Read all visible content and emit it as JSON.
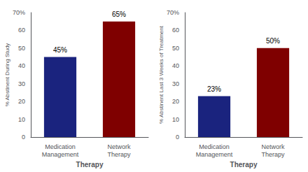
{
  "chart_data": [
    {
      "type": "bar",
      "categories": [
        "Medication\nManagement",
        "Network\nTherapy"
      ],
      "values": [
        45,
        65
      ],
      "value_labels": [
        "45%",
        "65%"
      ],
      "data_labels": true,
      "colors": [
        "#1a237e",
        "#7f0000"
      ],
      "xlabel": "Therapy",
      "ylabel": "% Abstinent During Study",
      "ylim": [
        0,
        70
      ],
      "yticks": [
        0,
        10,
        20,
        30,
        40,
        50,
        60,
        {
          "value": 70,
          "label": "70%"
        }
      ],
      "grid": false
    },
    {
      "type": "bar",
      "categories": [
        "Medication\nManagement",
        "Network\nTherapy"
      ],
      "values": [
        23,
        50
      ],
      "value_labels": [
        "23%",
        "50%"
      ],
      "data_labels": true,
      "colors": [
        "#1a237e",
        "#7f0000"
      ],
      "xlabel": "Therapy",
      "ylabel": "% Abstinent Last 3 Weeks of Treatment",
      "ylim": [
        0,
        70
      ],
      "yticks": [
        0,
        10,
        20,
        30,
        40,
        50,
        60,
        {
          "value": 70,
          "label": "70%"
        }
      ],
      "grid": false
    }
  ]
}
